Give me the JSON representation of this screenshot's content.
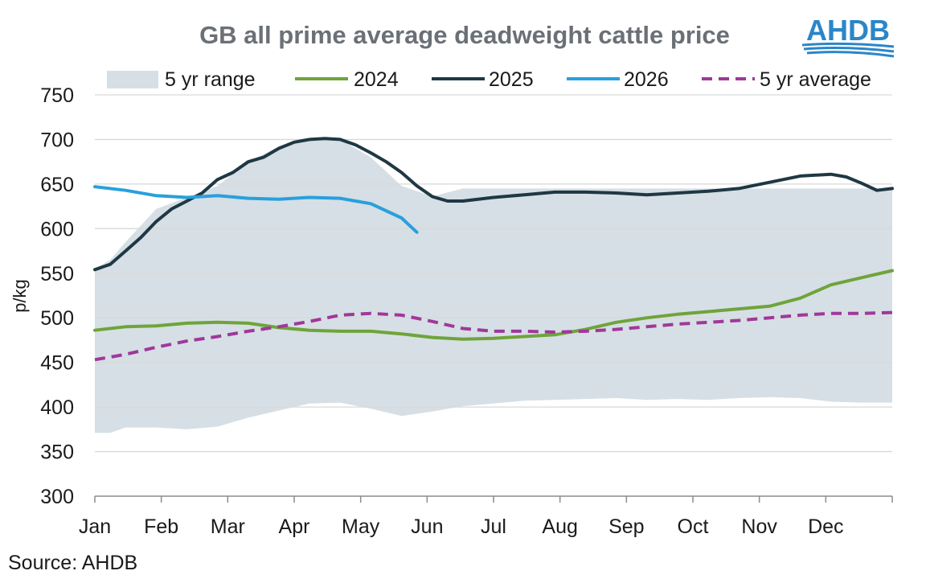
{
  "logo": {
    "text": "AHDB",
    "color": "#2b86c8"
  },
  "source": "Source: AHDB",
  "colors": {
    "range": "#d6dfe5",
    "y2024": "#6fa43a",
    "y2025": "#1e3844",
    "y2026": "#29a0dc",
    "avg": "#a0389a",
    "grid": "#d9d9d9",
    "title": "#6b7077"
  },
  "chart_data": {
    "type": "line",
    "title": "GB all prime average deadweight cattle price",
    "xlabel": "",
    "ylabel": "p/kg",
    "ylim": [
      300,
      750
    ],
    "yticks": [
      300,
      350,
      400,
      450,
      500,
      550,
      600,
      650,
      700,
      750
    ],
    "x_tick_labels": [
      "Jan",
      "Feb",
      "Mar",
      "Apr",
      "May",
      "Jun",
      "Jul",
      "Aug",
      "Sep",
      "Oct",
      "Nov",
      "Dec"
    ],
    "x_unit": "week of year",
    "xlim": [
      1,
      53
    ],
    "grid": "horizontal",
    "legend_position": "top",
    "range": {
      "name": "5 yr range",
      "x": [
        1,
        2,
        3,
        5,
        7,
        9,
        11,
        13,
        15,
        17,
        19,
        21,
        23,
        25,
        27,
        29,
        31,
        33,
        35,
        37,
        39,
        41,
        43,
        45,
        47,
        49,
        51,
        53
      ],
      "upper": [
        555,
        565,
        585,
        622,
        635,
        648,
        675,
        692,
        701,
        700,
        680,
        648,
        636,
        645,
        645,
        645,
        645,
        645,
        645,
        645,
        645,
        645,
        645,
        645,
        645,
        645,
        645,
        645
      ],
      "lower": [
        371,
        371,
        377,
        377,
        375,
        378,
        388,
        396,
        404,
        405,
        398,
        390,
        395,
        401,
        404,
        407,
        408,
        409,
        410,
        408,
        409,
        408,
        410,
        411,
        410,
        406,
        405,
        405
      ]
    },
    "series": [
      {
        "name": "2024",
        "x": [
          1,
          3,
          5,
          7,
          9,
          11,
          13,
          15,
          17,
          19,
          21,
          23,
          25,
          27,
          29,
          31,
          33,
          35,
          37,
          39,
          41,
          43,
          45,
          47,
          49,
          51,
          53
        ],
        "values": [
          486,
          490,
          491,
          494,
          495,
          494,
          489,
          486,
          485,
          485,
          482,
          478,
          476,
          477,
          479,
          481,
          487,
          495,
          500,
          504,
          507,
          510,
          513,
          522,
          537,
          545,
          553
        ]
      },
      {
        "name": "2025",
        "x": [
          1,
          2,
          3,
          4,
          5,
          6,
          7,
          8,
          9,
          10,
          11,
          12,
          13,
          14,
          15,
          16,
          17,
          18,
          19,
          20,
          21,
          22,
          23,
          24,
          25,
          27,
          29,
          31,
          33,
          35,
          37,
          39,
          41,
          43,
          45,
          47,
          49,
          50,
          51,
          52,
          53
        ],
        "values": [
          554,
          560,
          575,
          590,
          608,
          622,
          631,
          640,
          655,
          663,
          675,
          680,
          690,
          697,
          700,
          701,
          700,
          694,
          685,
          675,
          663,
          648,
          636,
          631,
          631,
          635,
          638,
          641,
          641,
          640,
          638,
          640,
          642,
          645,
          652,
          659,
          661,
          658,
          651,
          643,
          645
        ]
      },
      {
        "name": "2026",
        "x": [
          1,
          3,
          5,
          7,
          9,
          11,
          13,
          15,
          17,
          19,
          21,
          22
        ],
        "values": [
          647,
          643,
          637,
          635,
          637,
          634,
          633,
          635,
          634,
          628,
          612,
          596
        ]
      },
      {
        "name": "5 yr average",
        "dashed": true,
        "x": [
          1,
          3,
          5,
          7,
          9,
          11,
          13,
          15,
          17,
          19,
          21,
          23,
          25,
          27,
          29,
          31,
          33,
          35,
          37,
          39,
          41,
          43,
          45,
          47,
          49,
          51,
          53
        ],
        "values": [
          453,
          459,
          467,
          474,
          479,
          485,
          490,
          496,
          503,
          505,
          503,
          496,
          488,
          485,
          485,
          484,
          485,
          487,
          490,
          493,
          495,
          497,
          500,
          503,
          505,
          505,
          506
        ]
      }
    ]
  }
}
